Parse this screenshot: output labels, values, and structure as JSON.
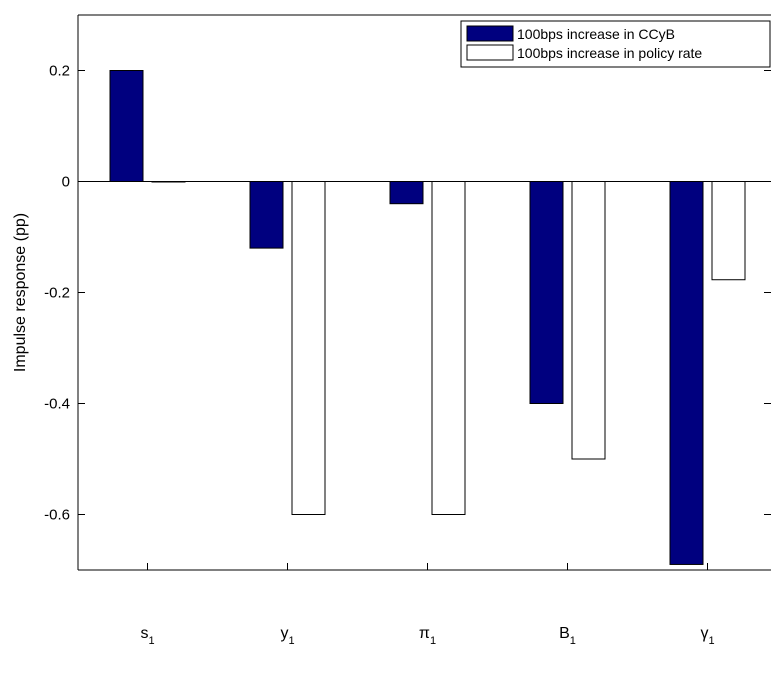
{
  "chart_data": {
    "type": "bar",
    "title": "",
    "xlabel": "",
    "ylabel": "Impulse response (pp)",
    "ylim": [
      -0.7,
      0.3
    ],
    "yticks": [
      0.2,
      0,
      -0.2,
      -0.4,
      -0.6
    ],
    "ytick_labels": [
      "0.2",
      "0",
      "-0.2",
      "-0.4",
      "-0.6"
    ],
    "categories": [
      {
        "base": "s",
        "sub": "1"
      },
      {
        "base": "y",
        "sub": "1"
      },
      {
        "base": "π",
        "sub": "1"
      },
      {
        "base": "B",
        "sub": "1"
      },
      {
        "base": "γ",
        "sub": "1"
      }
    ],
    "series": [
      {
        "name": "100bps increase in CCyB",
        "color": "#00007f",
        "values": [
          0.2,
          -0.12,
          -0.04,
          -0.4,
          -0.69
        ]
      },
      {
        "name": "100bps increase in policy rate",
        "color": "#ffffff",
        "values": [
          0.0,
          -0.6,
          -0.6,
          -0.5,
          -0.177
        ]
      }
    ],
    "grid": false,
    "legend_position": "top-right",
    "zero_line": true
  }
}
